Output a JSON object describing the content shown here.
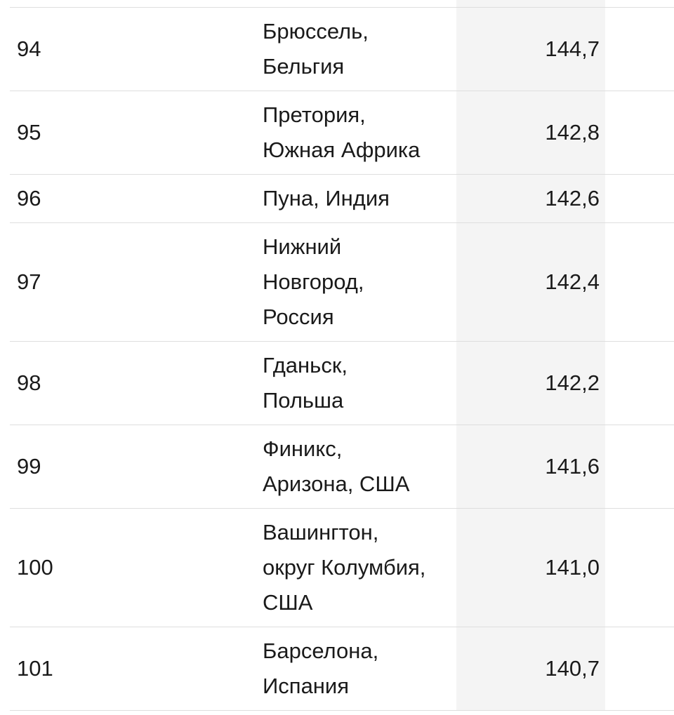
{
  "table": {
    "rows": [
      {
        "rank": "94",
        "city_lines": [
          "Брюссель,",
          "Бельгия"
        ],
        "score": "144,7"
      },
      {
        "rank": "95",
        "city_lines": [
          "Претория,",
          "Южная Африка"
        ],
        "score": "142,8"
      },
      {
        "rank": "96",
        "city_lines": [
          "Пуна, Индия"
        ],
        "score": "142,6"
      },
      {
        "rank": "97",
        "city_lines": [
          "Нижний",
          "Новгород,",
          "Россия"
        ],
        "score": "142,4"
      },
      {
        "rank": "98",
        "city_lines": [
          "Гданьск,",
          "Польша"
        ],
        "score": "142,2"
      },
      {
        "rank": "99",
        "city_lines": [
          "Финикс,",
          "Аризона, США"
        ],
        "score": "141,6"
      },
      {
        "rank": "100",
        "city_lines": [
          "Вашингтон,",
          "округ Колумбия,",
          "США"
        ],
        "score": "141,0"
      },
      {
        "rank": "101",
        "city_lines": [
          "Барселона,",
          "Испания"
        ],
        "score": "140,7"
      }
    ]
  },
  "colors": {
    "text": "#1a1a1a",
    "border": "#dedede",
    "score_column_bg": "#f4f4f4"
  }
}
